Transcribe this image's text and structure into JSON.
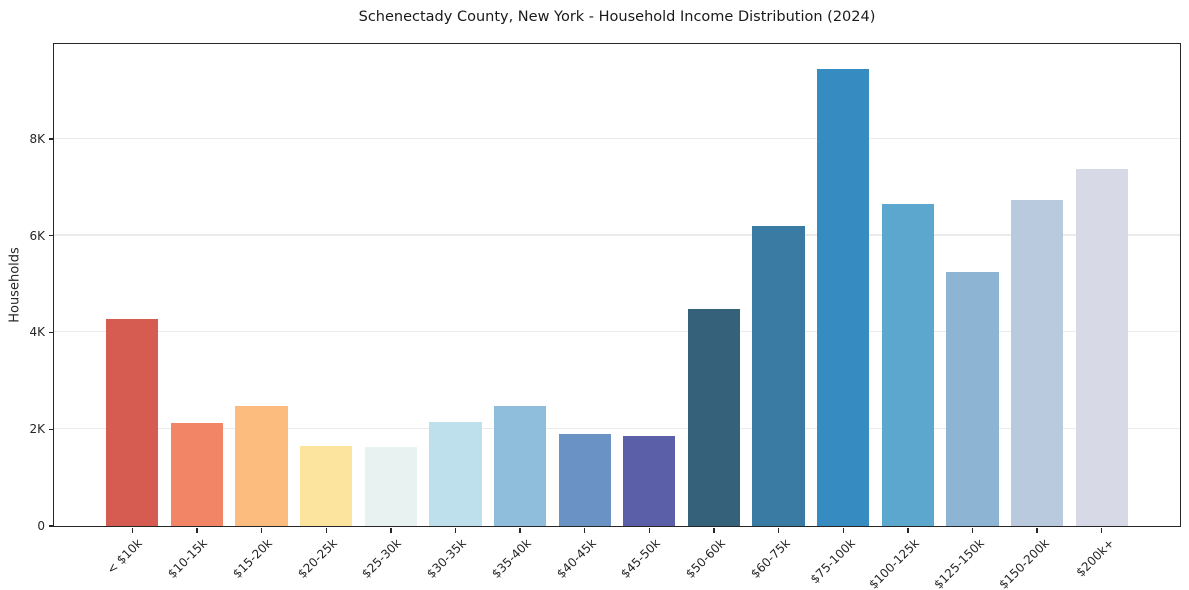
{
  "chart_data": {
    "type": "bar",
    "title": "Schenectady County, New York - Household Income Distribution (2024)",
    "ylabel": "Households",
    "xlabel": "",
    "categories": [
      "< $10k",
      "$10-15k",
      "$15-20k",
      "$20-25k",
      "$25-30k",
      "$30-35k",
      "$35-40k",
      "$40-45k",
      "$45-50k",
      "$50-60k",
      "$60-75k",
      "$75-100k",
      "$100-125k",
      "$125-150k",
      "$150-200k",
      "$200k+"
    ],
    "values": [
      4270,
      2120,
      2480,
      1660,
      1640,
      2150,
      2470,
      1910,
      1850,
      4480,
      6200,
      9450,
      6650,
      5250,
      6740,
      7380
    ],
    "bar_colors": [
      "#d65c51",
      "#f28565",
      "#fbbc7d",
      "#fde49e",
      "#e7f2f1",
      "#bedfec",
      "#8fbedd",
      "#6b92c4",
      "#5b5fa7",
      "#35617a",
      "#397ba3",
      "#368bc1",
      "#5ca7cd",
      "#8db5d3",
      "#b9c9de",
      "#d7d9e7"
    ],
    "ylim": [
      0,
      9960
    ],
    "yticks": [
      {
        "value": 0,
        "label": "0"
      },
      {
        "value": 2000,
        "label": "2K"
      },
      {
        "value": 4000,
        "label": "4K"
      },
      {
        "value": 6000,
        "label": "6K"
      },
      {
        "value": 8000,
        "label": "8K"
      }
    ],
    "grid": "horizontal",
    "legend": "none",
    "axis_color": "#262626",
    "grid_color": "#ebebeb",
    "background": "#ffffff"
  }
}
